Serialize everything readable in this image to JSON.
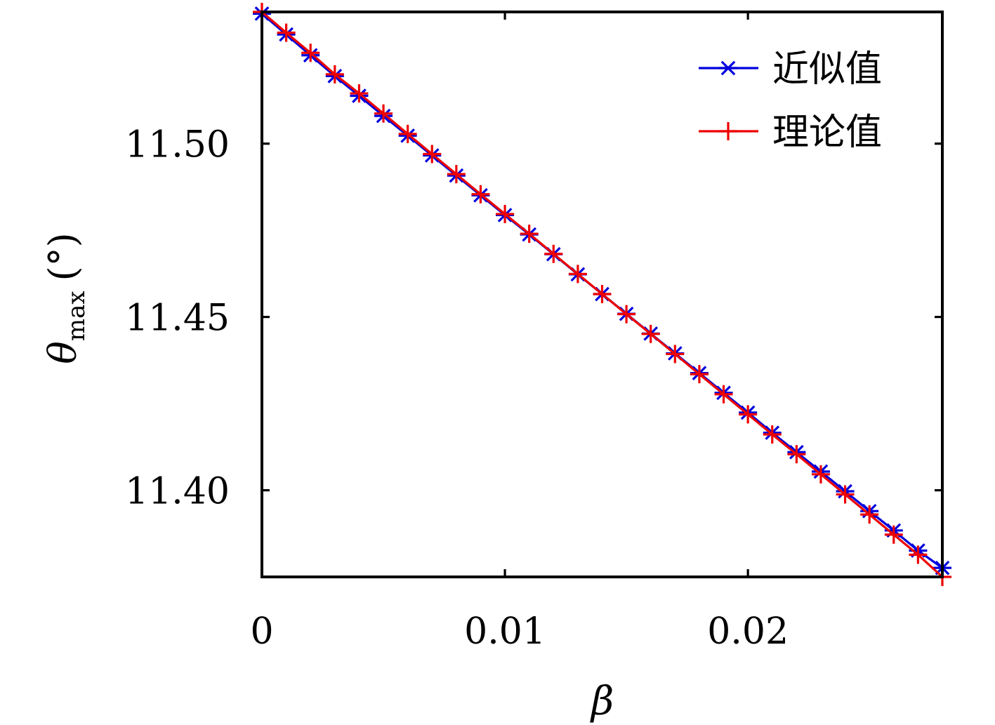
{
  "chart_data": {
    "type": "line",
    "title": "",
    "xlabel": "β",
    "ylabel": {
      "symbol": "θ",
      "subscript": "max",
      "unit": "(°)"
    },
    "xlim": [
      0,
      0.028
    ],
    "ylim": [
      11.375,
      11.538
    ],
    "xticks": [
      {
        "value": 0,
        "label": "0"
      },
      {
        "value": 0.01,
        "label": "0.01"
      },
      {
        "value": 0.02,
        "label": "0.02"
      }
    ],
    "yticks": [
      {
        "value": 11.4,
        "label": "11.40"
      },
      {
        "value": 11.45,
        "label": "11.45"
      },
      {
        "value": 11.5,
        "label": "11.50"
      }
    ],
    "grid": false,
    "legend_position": "top-right",
    "x": [
      0,
      0.001,
      0.002,
      0.003,
      0.004,
      0.005,
      0.006,
      0.007,
      0.008,
      0.009,
      0.01,
      0.011,
      0.012,
      0.013,
      0.014,
      0.015,
      0.016,
      0.017,
      0.018,
      0.019,
      0.02,
      0.021,
      0.022,
      0.023,
      0.024,
      0.025,
      0.026,
      0.027,
      0.028
    ],
    "series": [
      {
        "name": "近似值",
        "color": "#0000dd",
        "marker": "asterisk",
        "values": [
          11.5375,
          11.5315,
          11.5255,
          11.5195,
          11.5138,
          11.508,
          11.5023,
          11.4966,
          11.4908,
          11.4851,
          11.4794,
          11.4738,
          11.4681,
          11.4623,
          11.4566,
          11.4509,
          11.4452,
          11.4395,
          11.4338,
          11.4281,
          11.4224,
          11.4166,
          11.411,
          11.4054,
          11.3997,
          11.394,
          11.3884,
          11.3826,
          11.3776
        ]
      },
      {
        "name": "理论值",
        "color": "#ee0000",
        "marker": "plus",
        "values": [
          11.538,
          11.532,
          11.5262,
          11.52,
          11.5145,
          11.5087,
          11.5028,
          11.497,
          11.4912,
          11.4854,
          11.4797,
          11.474,
          11.4682,
          11.4624,
          11.4566,
          11.4508,
          11.4451,
          11.4393,
          11.4335,
          11.4277,
          11.4219,
          11.4161,
          11.4104,
          11.4046,
          11.3988,
          11.393,
          11.3872,
          11.3814,
          11.375
        ]
      }
    ]
  }
}
